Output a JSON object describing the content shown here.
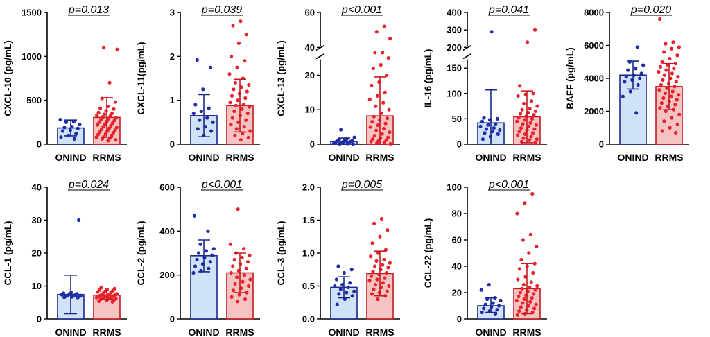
{
  "chart_data": [
    {
      "type": "bar",
      "ylabel": "CXCL-10 (pg/mL)",
      "pvalue": "p=0.013",
      "categories": [
        "ONIND",
        "RRMS"
      ],
      "ylim": [
        0,
        1500
      ],
      "yticks": [
        0,
        500,
        1000,
        1500
      ],
      "tick_labels": [
        "0",
        "500",
        "1000",
        "1500"
      ],
      "bars": [
        {
          "mean": 185,
          "sd_low": 95,
          "sd_high": 275
        },
        {
          "mean": 305,
          "sd_low": 80,
          "sd_high": 530
        }
      ],
      "points": [
        [
          280,
          255,
          250,
          225,
          200,
          190,
          180,
          160,
          150,
          120,
          100,
          80,
          60
        ],
        [
          1100,
          1080,
          700,
          520,
          480,
          430,
          410,
          400,
          380,
          360,
          350,
          340,
          330,
          320,
          310,
          300,
          290,
          280,
          270,
          260,
          250,
          240,
          230,
          220,
          210,
          200,
          190,
          180,
          170,
          160,
          150,
          140,
          130,
          120,
          110,
          100,
          90,
          80,
          70,
          60,
          50,
          40
        ]
      ]
    },
    {
      "type": "bar",
      "ylabel": "CXCL-11(pg/mL)",
      "pvalue": "p=0.039",
      "categories": [
        "ONIND",
        "RRMS"
      ],
      "ylim": [
        0,
        3
      ],
      "yticks": [
        0,
        1,
        2,
        3
      ],
      "tick_labels": [
        "0",
        "1",
        "2",
        "3"
      ],
      "bars": [
        {
          "mean": 0.65,
          "sd_low": 0.17,
          "sd_high": 1.13
        },
        {
          "mean": 0.88,
          "sd_low": 0.28,
          "sd_high": 1.48
        }
      ],
      "points": [
        [
          1.92,
          1.75,
          1.25,
          0.9,
          0.82,
          0.75,
          0.7,
          0.6,
          0.55,
          0.5,
          0.4,
          0.35,
          0.3,
          0.2
        ],
        [
          2.8,
          2.7,
          2.5,
          2.3,
          2.0,
          1.9,
          1.75,
          1.6,
          1.5,
          1.4,
          1.35,
          1.3,
          1.25,
          1.2,
          1.15,
          1.1,
          1.05,
          1.0,
          0.95,
          0.9,
          0.88,
          0.85,
          0.8,
          0.75,
          0.7,
          0.65,
          0.6,
          0.55,
          0.5,
          0.45,
          0.4,
          0.35,
          0.3,
          0.25,
          0.2,
          0.15,
          0.1
        ]
      ]
    },
    {
      "type": "bar",
      "ylabel": "CXCL-13 (pg/mL)",
      "pvalue": "p<0.001",
      "categories": [
        "ONIND",
        "RRMS"
      ],
      "ylim": [
        0,
        60
      ],
      "axis_break": [
        25,
        40
      ],
      "yticks": [
        0,
        10,
        20,
        40,
        60
      ],
      "tick_labels": [
        "0",
        "10",
        "20",
        "40",
        "60"
      ],
      "bars": [
        {
          "mean": 0.8,
          "sd_low": 0,
          "sd_high": 1.8
        },
        {
          "mean": 8.2,
          "sd_low": 0,
          "sd_high": 19.5
        }
      ],
      "points": [
        [
          4.2,
          2.0,
          1.5,
          1.3,
          1.1,
          1.0,
          0.9,
          0.8,
          0.7,
          0.6,
          0.5,
          0.4,
          0.3,
          0.2,
          0.1,
          0.05
        ],
        [
          52,
          49,
          45,
          28,
          27,
          25,
          23,
          22,
          20,
          18,
          17,
          15,
          14,
          13,
          12,
          11,
          10,
          9,
          8,
          7.5,
          7,
          6.5,
          6,
          5.5,
          5,
          4.5,
          4,
          3.5,
          3,
          2.5,
          2,
          1.8,
          1.5,
          1.2,
          1,
          0.8,
          0.5,
          0.3,
          0.1
        ]
      ]
    },
    {
      "type": "bar",
      "ylabel": "IL-16 (pg/mL)",
      "pvalue": "p=0.041",
      "categories": [
        "ONIND",
        "RRMS"
      ],
      "ylim": [
        0,
        400
      ],
      "axis_break": [
        170,
        200
      ],
      "yticks": [
        0,
        50,
        100,
        150,
        200,
        300,
        400
      ],
      "tick_labels": [
        "0",
        "50",
        "100",
        "150",
        "200",
        "300",
        "400"
      ],
      "bars": [
        {
          "mean": 42,
          "sd_low": 0,
          "sd_high": 107
        },
        {
          "mean": 54,
          "sd_low": 3,
          "sd_high": 105
        }
      ],
      "points": [
        [
          290,
          52,
          50,
          48,
          45,
          40,
          38,
          35,
          32,
          30,
          28,
          25,
          22,
          20,
          15,
          10
        ],
        [
          300,
          230,
          115,
          100,
          98,
          95,
          85,
          80,
          75,
          70,
          68,
          65,
          62,
          60,
          58,
          55,
          52,
          50,
          48,
          45,
          42,
          40,
          38,
          35,
          32,
          30,
          28,
          25,
          22,
          20,
          18,
          15,
          12,
          10,
          8,
          5,
          3
        ]
      ]
    },
    {
      "type": "bar",
      "ylabel": "BAFF (pg/mL)",
      "pvalue": "p=0.020",
      "categories": [
        "ONIND",
        "RRMS"
      ],
      "ylim": [
        0,
        8000
      ],
      "yticks": [
        0,
        2000,
        4000,
        6000,
        8000
      ],
      "tick_labels": [
        "0",
        "2000",
        "4000",
        "6000",
        "8000"
      ],
      "bars": [
        {
          "mean": 4200,
          "sd_low": 3350,
          "sd_high": 5050
        },
        {
          "mean": 3500,
          "sd_low": 2100,
          "sd_high": 4900
        }
      ],
      "points": [
        [
          5900,
          5000,
          4800,
          4600,
          4500,
          4300,
          4200,
          4100,
          4000,
          3900,
          3800,
          3600,
          3200,
          2900,
          1900
        ],
        [
          7600,
          6200,
          6100,
          5900,
          5800,
          5600,
          5400,
          5200,
          5000,
          4900,
          4800,
          4700,
          4600,
          4500,
          4400,
          4300,
          4200,
          4100,
          4000,
          3900,
          3800,
          3700,
          3600,
          3500,
          3400,
          3300,
          3200,
          3100,
          3000,
          2900,
          2800,
          2700,
          2600,
          2500,
          2400,
          2300,
          2200,
          2100,
          2000,
          1800,
          1600,
          1400,
          1200,
          1000,
          800,
          700
        ]
      ]
    },
    {
      "type": "bar",
      "ylabel": "CCL-1 (pg/mL)",
      "pvalue": "p=0.024",
      "categories": [
        "ONIND",
        "RRMS"
      ],
      "ylim": [
        0,
        40
      ],
      "yticks": [
        0,
        10,
        20,
        30,
        40
      ],
      "tick_labels": [
        "0",
        "10",
        "20",
        "30",
        "40"
      ],
      "bars": [
        {
          "mean": 7.4,
          "sd_low": 1.6,
          "sd_high": 13.3
        },
        {
          "mean": 7.2,
          "sd_low": 6.0,
          "sd_high": 8.5
        }
      ],
      "points": [
        [
          30,
          8,
          7.8,
          7.6,
          7.5,
          7.4,
          7.3,
          7.2,
          7.1,
          7.0,
          6.9,
          6.8,
          6.7,
          6.6,
          6.5
        ],
        [
          9.5,
          9.2,
          9.0,
          8.8,
          8.6,
          8.4,
          8.2,
          8.0,
          7.8,
          7.6,
          7.5,
          7.4,
          7.3,
          7.2,
          7.1,
          7.0,
          6.9,
          6.8,
          6.7,
          6.6,
          6.5,
          6.4,
          6.3,
          6.2,
          6.1,
          6.0,
          5.8,
          5.6,
          5.4,
          5.2
        ]
      ]
    },
    {
      "type": "bar",
      "ylabel": "CCL-2 (pg/mL)",
      "pvalue": "p<0.001",
      "categories": [
        "ONIND",
        "RRMS"
      ],
      "ylim": [
        0,
        600
      ],
      "yticks": [
        0,
        200,
        400,
        600
      ],
      "tick_labels": [
        "0",
        "200",
        "400",
        "600"
      ],
      "bars": [
        {
          "mean": 288,
          "sd_low": 215,
          "sd_high": 360
        },
        {
          "mean": 210,
          "sd_low": 120,
          "sd_high": 300
        }
      ],
      "points": [
        [
          470,
          400,
          340,
          320,
          310,
          300,
          290,
          280,
          270,
          260,
          250,
          240,
          230,
          220,
          210
        ],
        [
          500,
          340,
          320,
          300,
          290,
          280,
          270,
          260,
          250,
          240,
          230,
          220,
          210,
          200,
          190,
          180,
          170,
          160,
          150,
          140,
          130,
          120,
          110,
          100,
          90,
          80
        ]
      ]
    },
    {
      "type": "bar",
      "ylabel": "CCL-3 (pg/mL)",
      "pvalue": "p=0.005",
      "categories": [
        "ONIND",
        "RRMS"
      ],
      "ylim": [
        0,
        2.0
      ],
      "yticks": [
        0,
        0.5,
        1.0,
        1.5,
        2.0
      ],
      "tick_labels": [
        "0.0",
        "0.5",
        "1.0",
        "1.5",
        "2.0"
      ],
      "bars": [
        {
          "mean": 0.48,
          "sd_low": 0.32,
          "sd_high": 0.64
        },
        {
          "mean": 0.69,
          "sd_low": 0.35,
          "sd_high": 1.03
        }
      ],
      "points": [
        [
          0.8,
          0.75,
          0.7,
          0.6,
          0.55,
          0.52,
          0.5,
          0.48,
          0.45,
          0.42,
          0.4,
          0.38,
          0.35,
          0.3,
          0.22
        ],
        [
          1.52,
          1.45,
          1.35,
          1.25,
          1.15,
          1.05,
          1.0,
          0.95,
          0.9,
          0.88,
          0.85,
          0.82,
          0.8,
          0.78,
          0.75,
          0.72,
          0.7,
          0.68,
          0.65,
          0.62,
          0.6,
          0.58,
          0.55,
          0.52,
          0.5,
          0.48,
          0.45,
          0.42,
          0.4,
          0.38,
          0.35,
          0.3
        ]
      ]
    },
    {
      "type": "bar",
      "ylabel": "CCL-22 (pg/mL)",
      "pvalue": "p<0.001",
      "categories": [
        "ONIND",
        "RRMS"
      ],
      "ylim": [
        0,
        100
      ],
      "yticks": [
        0,
        20,
        40,
        60,
        80,
        100
      ],
      "tick_labels": [
        "0",
        "20",
        "40",
        "60",
        "80",
        "100"
      ],
      "bars": [
        {
          "mean": 10,
          "sd_low": 5,
          "sd_high": 16
        },
        {
          "mean": 23,
          "sd_low": 4,
          "sd_high": 42
        }
      ],
      "points": [
        [
          26,
          22,
          16,
          15,
          14,
          12,
          11,
          10,
          9,
          8,
          7,
          6,
          5,
          4
        ],
        [
          95,
          88,
          80,
          64,
          60,
          55,
          50,
          45,
          42,
          40,
          38,
          35,
          32,
          30,
          28,
          26,
          25,
          24,
          23,
          22,
          21,
          20,
          19,
          18,
          17,
          16,
          15,
          14,
          13,
          12,
          11,
          10,
          9,
          8,
          7,
          6,
          5,
          4,
          3
        ]
      ]
    }
  ],
  "colors": {
    "group1_dot": "#1f2ea8",
    "group1_bar": "#cfe2f7",
    "group1_edge": "#1a2a8c",
    "group2_dot": "#e8232b",
    "group2_bar": "#f6c3c3",
    "group2_edge": "#c41a20"
  }
}
